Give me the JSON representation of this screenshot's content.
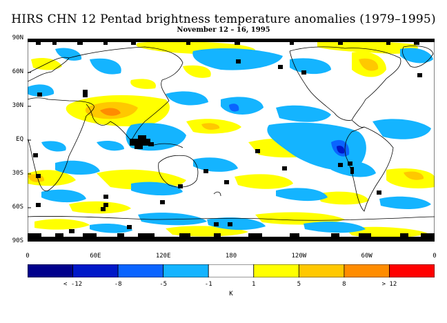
{
  "title": "HIRS CHN 12 Pentad brightness temperature anomalies (1979–1995)",
  "subtitle": "November 12 – 16, 1995",
  "lat_labels": [
    "90N",
    "60N",
    "30N",
    "EQ",
    "30S",
    "60S",
    "90S"
  ],
  "lat_values": [
    90,
    60,
    30,
    0,
    -30,
    -60,
    -90
  ],
  "lon_labels": [
    "0",
    "60E",
    "120E",
    "180",
    "120W",
    "60W",
    "0"
  ],
  "lon_values": [
    0,
    60,
    120,
    180,
    240,
    300,
    360
  ],
  "colorbar": {
    "unit": "K",
    "labels": [
      "< -12",
      "-8",
      "-5",
      "-1",
      "1",
      "5",
      "8",
      "> 12"
    ],
    "colors": [
      "#00008c",
      "#0018c8",
      "#0a64ff",
      "#14b4ff",
      "#ffffff",
      "#ffff00",
      "#ffc800",
      "#ff8c00",
      "#ff0000"
    ]
  },
  "missing_color": "#000000"
}
